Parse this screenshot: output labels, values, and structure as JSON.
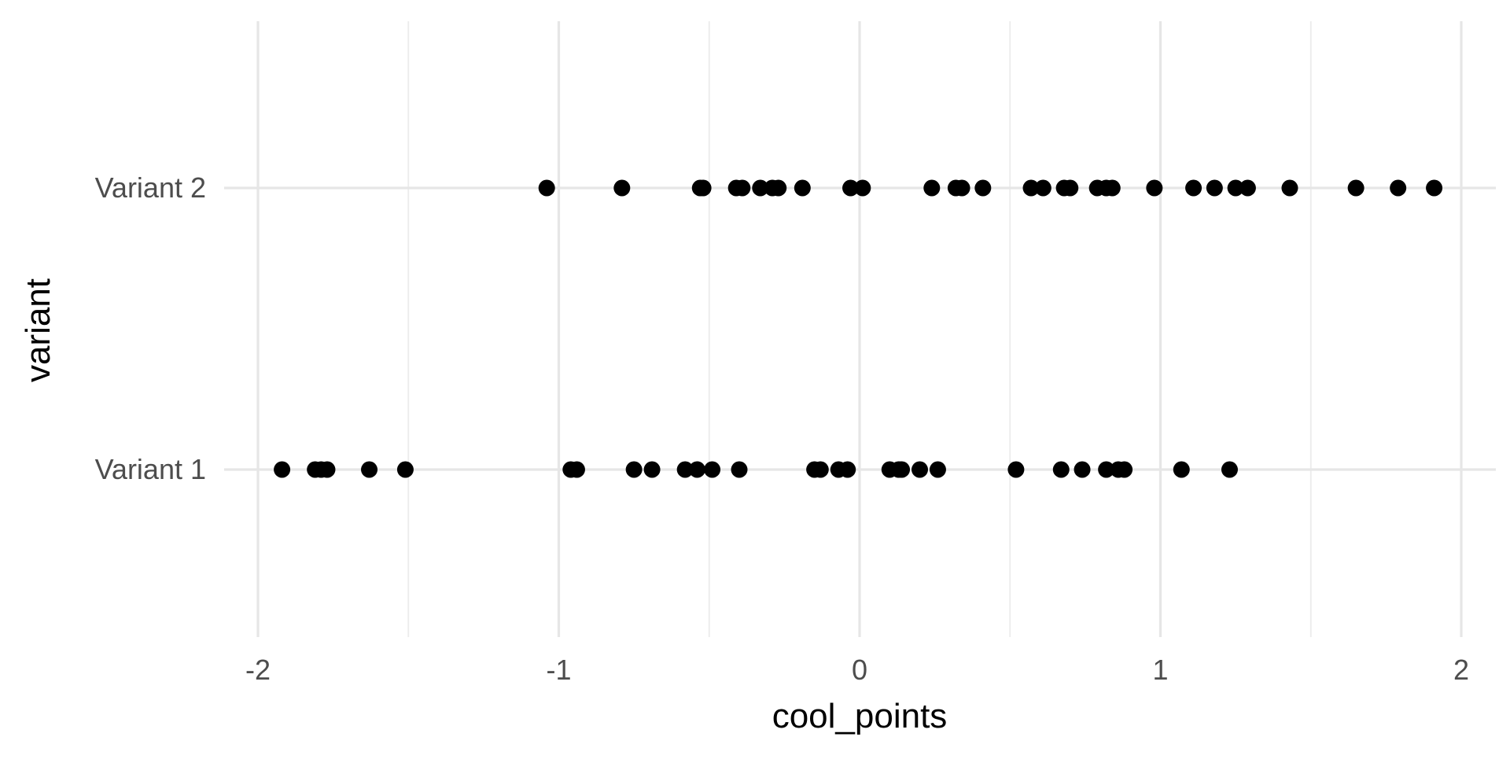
{
  "chart_data": {
    "type": "scatter",
    "xlabel": "cool_points",
    "ylabel": "variant",
    "xlim": [
      -2.05,
      2.05
    ],
    "x_ticks": [
      -2,
      -1,
      0,
      1,
      2
    ],
    "x_tick_labels": [
      "-2",
      "-1",
      "0",
      "1",
      "2"
    ],
    "x_minor_ticks": [
      -1.5,
      -0.5,
      0.5,
      1.5
    ],
    "categories": [
      "Variant 1",
      "Variant 2"
    ],
    "grid": true,
    "point_color": "#000000",
    "series": [
      {
        "category": "Variant 1",
        "x": [
          -1.92,
          -1.81,
          -1.79,
          -1.77,
          -1.63,
          -1.51,
          -0.96,
          -0.94,
          -0.75,
          -0.69,
          -0.58,
          -0.54,
          -0.49,
          -0.4,
          -0.15,
          -0.13,
          -0.07,
          -0.04,
          0.1,
          0.13,
          0.14,
          0.2,
          0.26,
          0.52,
          0.67,
          0.74,
          0.82,
          0.86,
          0.88,
          1.07,
          1.23
        ]
      },
      {
        "category": "Variant 2",
        "x": [
          -1.04,
          -0.79,
          -0.53,
          -0.52,
          -0.41,
          -0.39,
          -0.33,
          -0.29,
          -0.27,
          -0.19,
          -0.03,
          0.01,
          0.24,
          0.32,
          0.34,
          0.41,
          0.57,
          0.61,
          0.68,
          0.7,
          0.79,
          0.82,
          0.84,
          0.98,
          1.11,
          1.18,
          1.25,
          1.29,
          1.43,
          1.65,
          1.79,
          1.91
        ]
      }
    ]
  }
}
